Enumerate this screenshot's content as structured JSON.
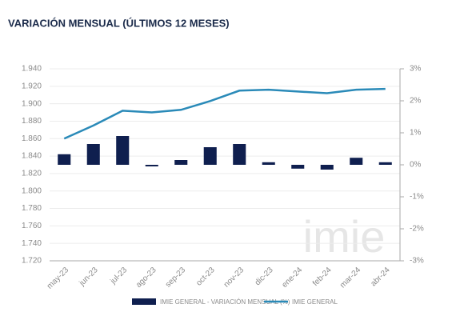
{
  "chart_data": {
    "type": "bar-line",
    "title": "VARIACIÓN MENSUAL (ÚLTIMOS 12 MESES)",
    "watermark": "imie",
    "categories": [
      "may-23",
      "jun-23",
      "jul-23",
      "ago-23",
      "sep-23",
      "oct-23",
      "nov-23",
      "dic-23",
      "ene-24",
      "feb-24",
      "mar-24",
      "abr-24"
    ],
    "series": [
      {
        "name": "IMIE GENERAL - VARIACIÓN MENSUAL (%)",
        "type": "bar",
        "axis": "y2",
        "color": "#0f1f4f",
        "values": [
          0.33,
          0.65,
          0.9,
          -0.05,
          0.15,
          0.55,
          0.65,
          0.08,
          -0.12,
          -0.15,
          0.22,
          0.08
        ]
      },
      {
        "name": "IMIE GENERAL",
        "type": "line",
        "color": "#2a8ab8",
        "values": [
          1860,
          1875,
          1892,
          1890,
          1893,
          1903,
          1915,
          1916,
          1914,
          1912,
          1916,
          1917
        ]
      }
    ],
    "ylim": [
      1720,
      1940
    ],
    "yticks": [
      {
        "value": 1720,
        "label": "1.720"
      },
      {
        "value": 1740,
        "label": "1.740"
      },
      {
        "value": 1760,
        "label": "1.760"
      },
      {
        "value": 1780,
        "label": "1.780"
      },
      {
        "value": 1800,
        "label": "1.800"
      },
      {
        "value": 1820,
        "label": "1.820"
      },
      {
        "value": 1840,
        "label": "1.840"
      },
      {
        "value": 1860,
        "label": "1.860"
      },
      {
        "value": 1880,
        "label": "1.880"
      },
      {
        "value": 1900,
        "label": "1.900"
      },
      {
        "value": 1920,
        "label": "1.920"
      },
      {
        "value": 1940,
        "label": "1.940"
      }
    ],
    "y2lim": [
      -3,
      3
    ],
    "y2ticks": [
      {
        "value": -3,
        "label": "-3%"
      },
      {
        "value": -2,
        "label": "-2%"
      },
      {
        "value": -1,
        "label": "-1%"
      },
      {
        "value": 0,
        "label": "0%"
      },
      {
        "value": 1,
        "label": "1%"
      },
      {
        "value": 2,
        "label": "2%"
      },
      {
        "value": 3,
        "label": "3%"
      }
    ],
    "grid": true
  }
}
